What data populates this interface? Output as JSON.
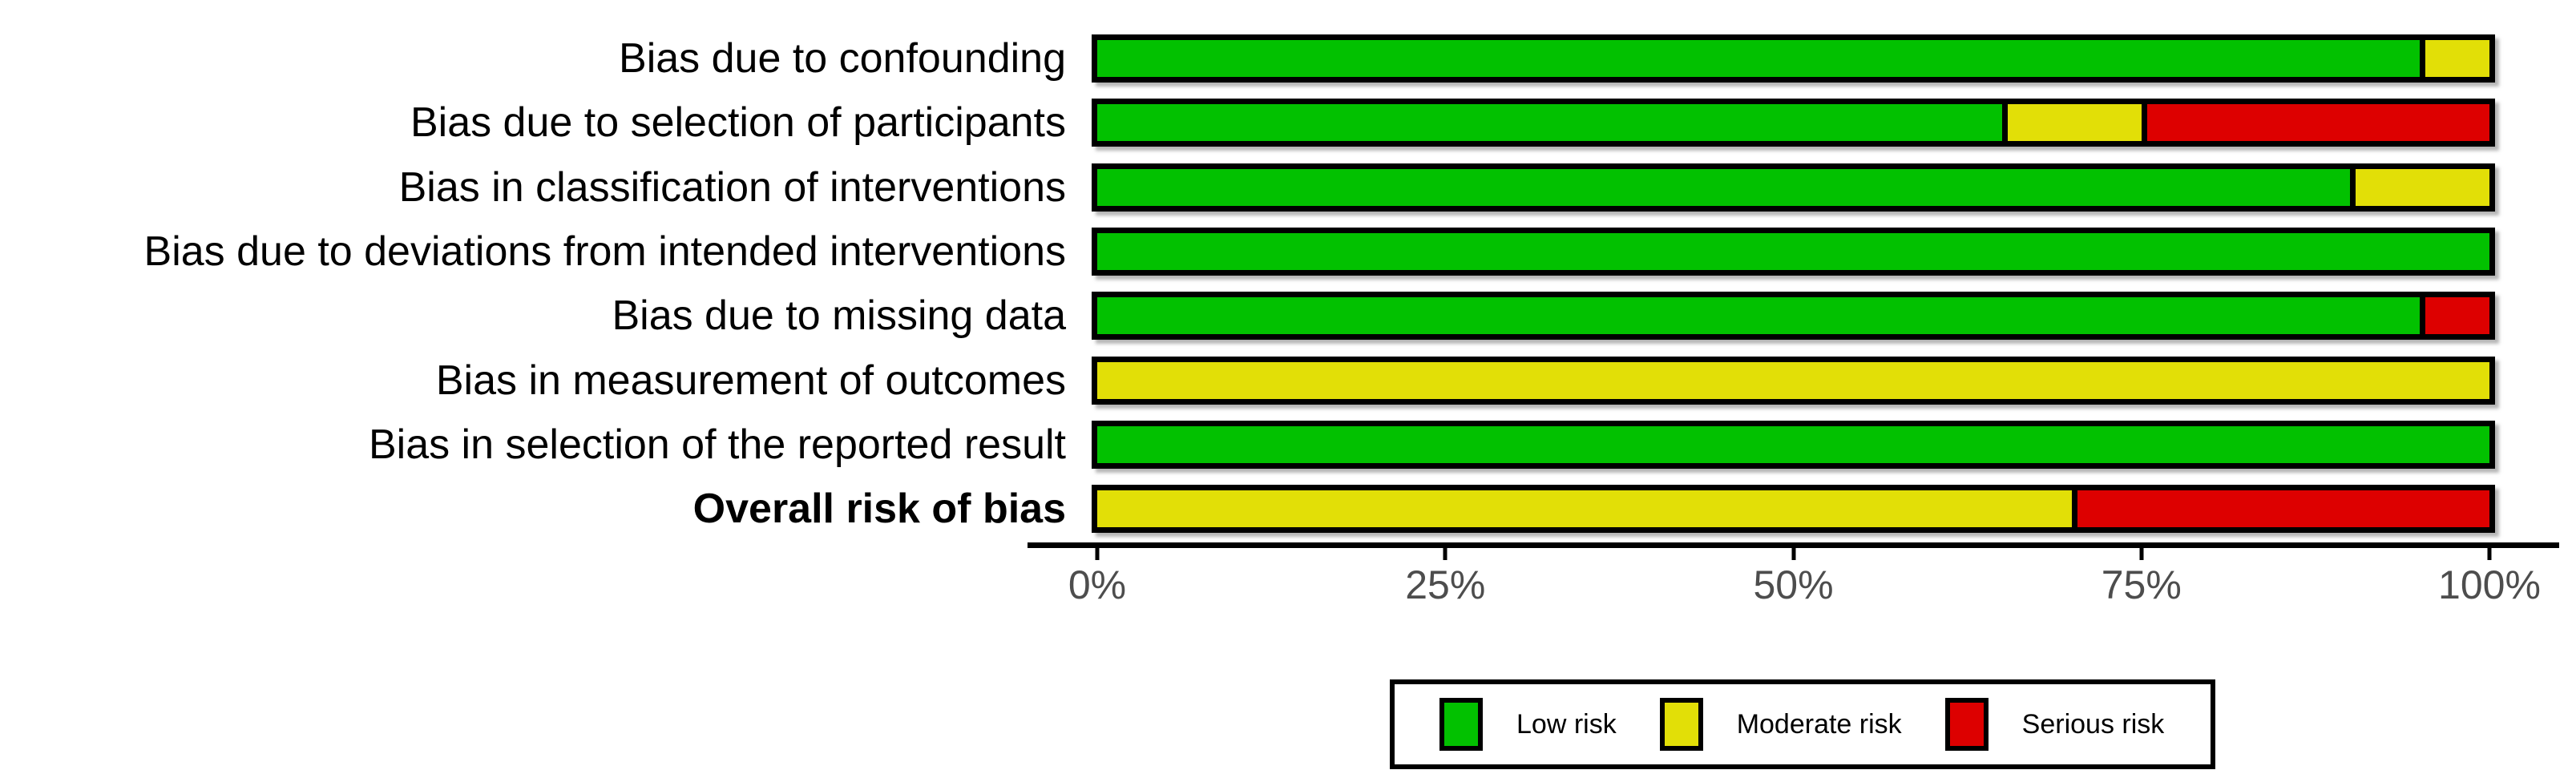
{
  "chart_data": {
    "type": "bar",
    "variant": "horizontal-stacked-percent",
    "title": "",
    "xlabel": "",
    "ylabel": "",
    "categories": [
      {
        "label": "Bias due to confounding",
        "bold": false
      },
      {
        "label": "Bias due to selection of participants",
        "bold": false
      },
      {
        "label": "Bias in classification of interventions",
        "bold": false
      },
      {
        "label": "Bias due to deviations from intended interventions",
        "bold": false
      },
      {
        "label": "Bias due to missing data",
        "bold": false
      },
      {
        "label": "Bias in measurement of outcomes",
        "bold": false
      },
      {
        "label": "Bias in selection of the reported result",
        "bold": false
      },
      {
        "label": "Overall risk of bias",
        "bold": true
      }
    ],
    "series": [
      {
        "name": "Low risk",
        "color": "#02C100",
        "values": [
          95,
          65,
          90,
          100,
          95,
          0,
          100,
          0
        ]
      },
      {
        "name": "Moderate risk",
        "color": "#E2DF07",
        "values": [
          5,
          10,
          10,
          0,
          0,
          100,
          0,
          70
        ]
      },
      {
        "name": "Serious risk",
        "color": "#DD0000",
        "values": [
          0,
          25,
          0,
          0,
          5,
          0,
          0,
          30
        ]
      }
    ],
    "x_axis": {
      "range": [
        0,
        100
      ],
      "tick_values": [
        0,
        25,
        50,
        75,
        100
      ],
      "tick_labels": [
        "0%",
        "25%",
        "50%",
        "75%",
        "100%"
      ],
      "grid": false
    },
    "legend": {
      "position": "bottom",
      "entries": [
        {
          "label": "Low risk",
          "color": "#02C100"
        },
        {
          "label": "Moderate risk",
          "color": "#E2DF07"
        },
        {
          "label": "Serious risk",
          "color": "#DD0000"
        }
      ]
    },
    "colors": {
      "low_risk": "#02C100",
      "moderate_risk": "#E2DF07",
      "serious_risk": "#DD0000",
      "bar_border": "#000000",
      "axis_line": "#000000",
      "tick_text": "#4d4d4d",
      "label_text": "#000000",
      "background": "#ffffff"
    }
  }
}
